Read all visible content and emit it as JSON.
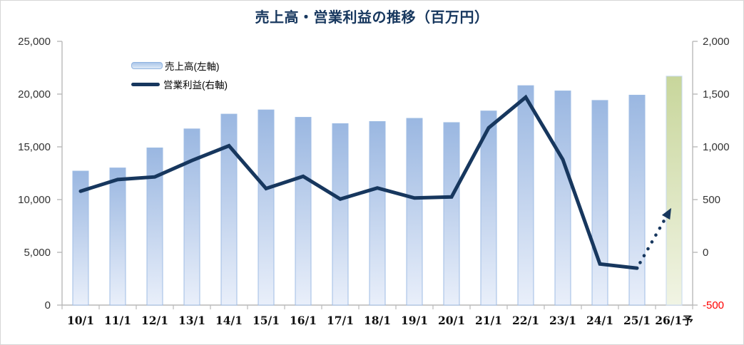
{
  "title": "売上高・営業利益の推移（百万円）",
  "legend": {
    "items": [
      {
        "label": "売上高(左軸)",
        "swatch": "bar"
      },
      {
        "label": "営業利益(右軸)",
        "swatch": "line"
      }
    ]
  },
  "colors": {
    "navy": "#17375e",
    "bar_top": "#9ab7e1",
    "bar_bottom": "#e9effa",
    "bar_edge": "#9fbce4",
    "forecast_top": "#c8d69b",
    "forecast_bottom": "#f1f4e4",
    "forecast_edge": "#c6d9f1",
    "axis_line": "#b9b9b9",
    "tick_label": "#333333",
    "x_label": "#111111",
    "negative_tick": "#ff0000"
  },
  "chart_data": {
    "type": "combo: bar + line (dual axis)",
    "categories": [
      "10/1",
      "11/1",
      "12/1",
      "13/1",
      "14/1",
      "15/1",
      "16/1",
      "17/1",
      "18/1",
      "19/1",
      "20/1",
      "21/1",
      "22/1",
      "23/1",
      "24/1",
      "25/1",
      "26/1予"
    ],
    "series": [
      {
        "name": "売上高(左軸)",
        "type": "bar",
        "axis": "left",
        "values": [
          12700,
          13000,
          14900,
          16700,
          18100,
          18500,
          17800,
          17200,
          17400,
          17700,
          17300,
          18400,
          20800,
          20300,
          19400,
          19900,
          21700
        ],
        "forecast_category": "26/1予"
      },
      {
        "name": "営業利益(右軸)",
        "type": "line",
        "axis": "right",
        "values": [
          580,
          690,
          715,
          870,
          1010,
          605,
          720,
          505,
          610,
          515,
          525,
          1180,
          1470,
          880,
          -110,
          -150
        ],
        "forecast": {
          "category": "26/1予",
          "value": 420,
          "style": "dotted-arrow"
        }
      }
    ],
    "left_axis": {
      "min": 0,
      "max": 25000,
      "tick_step": 5000,
      "tick_labels": [
        "0",
        "5,000",
        "10,000",
        "15,000",
        "20,000",
        "25,000"
      ]
    },
    "right_axis": {
      "min": -500,
      "max": 2000,
      "tick_step": 500,
      "tick_labels": [
        "-500",
        "0",
        "500",
        "1,000",
        "1,500",
        "2,000"
      ]
    },
    "grid": false,
    "legend_position": "upper-left-inside"
  }
}
